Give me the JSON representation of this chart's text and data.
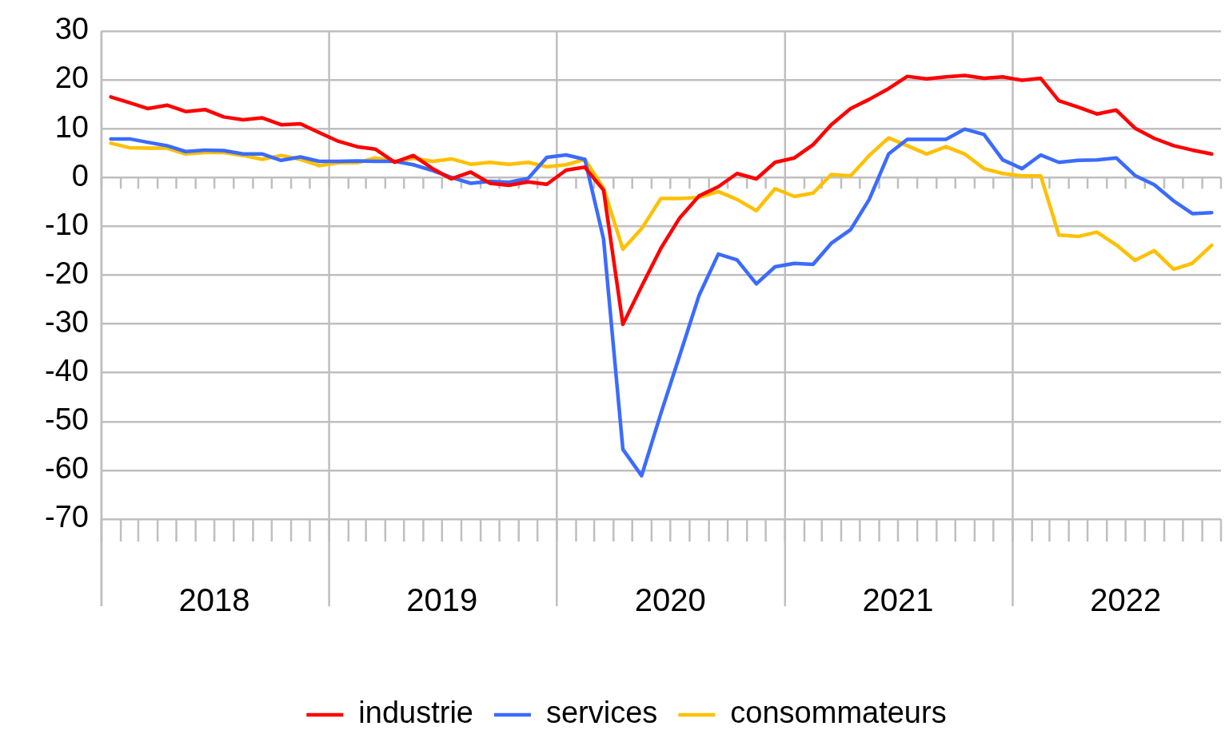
{
  "chart_data": {
    "type": "line",
    "x": [
      "2018-01-16",
      "2018-02-15",
      "2018-03-16",
      "2018-04-16",
      "2018-05-16",
      "2018-06-16",
      "2018-07-16",
      "2018-08-16",
      "2018-09-16",
      "2018-10-16",
      "2018-11-16",
      "2018-12-16",
      "2019-01-16",
      "2019-02-15",
      "2019-03-16",
      "2019-04-16",
      "2019-05-16",
      "2019-06-16",
      "2019-07-16",
      "2019-08-16",
      "2019-09-16",
      "2019-10-16",
      "2019-11-16",
      "2019-12-16",
      "2020-01-16",
      "2020-02-15",
      "2020-03-16",
      "2020-04-16",
      "2020-05-16",
      "2020-06-16",
      "2020-07-16",
      "2020-08-16",
      "2020-09-16",
      "2020-10-16",
      "2020-11-16",
      "2020-12-16",
      "2021-01-16",
      "2021-02-15",
      "2021-03-16",
      "2021-04-16",
      "2021-05-16",
      "2021-06-16",
      "2021-07-16",
      "2021-08-16",
      "2021-09-16",
      "2021-10-16",
      "2021-11-16",
      "2021-12-16",
      "2022-01-16",
      "2022-02-15",
      "2022-03-16",
      "2022-04-16",
      "2022-05-16",
      "2022-06-16",
      "2022-07-16",
      "2022-08-16",
      "2022-09-16",
      "2022-10-16",
      "2022-11-16"
    ],
    "series": [
      {
        "name": "industrie",
        "color": "#ff0000",
        "values": [
          16.5,
          15.3,
          14.1,
          14.8,
          13.5,
          13.9,
          12.4,
          11.8,
          12.2,
          10.8,
          11.0,
          9.2,
          7.4,
          6.3,
          5.8,
          3.1,
          4.5,
          1.8,
          -0.3,
          1.1,
          -1.2,
          -1.6,
          -0.9,
          -1.4,
          1.5,
          2.1,
          -2.6,
          -30.1,
          -22.3,
          -14.5,
          -8.3,
          -3.8,
          -1.9,
          0.8,
          -0.3,
          3.1,
          4.0,
          6.7,
          10.8,
          14.1,
          16.0,
          18.2,
          20.7,
          20.2,
          20.6,
          20.9,
          20.3,
          20.6,
          19.9,
          20.3,
          15.7,
          14.4,
          13.0,
          13.8,
          10.1,
          8.0,
          6.5,
          5.6,
          4.8
        ]
      },
      {
        "name": "services",
        "color": "#3b6bff",
        "values": [
          7.9,
          7.9,
          7.2,
          6.5,
          5.3,
          5.6,
          5.5,
          4.8,
          4.8,
          3.5,
          4.2,
          3.3,
          3.3,
          3.4,
          3.3,
          3.3,
          2.6,
          1.4,
          0.0,
          -1.2,
          -0.8,
          -1.0,
          -0.2,
          4.1,
          4.6,
          3.7,
          -12.6,
          -55.7,
          -61.1,
          -48.3,
          -36.5,
          -24.2,
          -15.7,
          -16.9,
          -21.8,
          -18.3,
          -17.6,
          -17.8,
          -13.5,
          -10.7,
          -4.5,
          4.8,
          7.8,
          7.8,
          7.8,
          9.9,
          8.8,
          3.6,
          1.8,
          4.6,
          3.1,
          3.5,
          3.6,
          4.0,
          0.4,
          -1.5,
          -4.8,
          -7.4,
          -7.2
        ]
      },
      {
        "name": "consommateurs",
        "color": "#ffc000",
        "values": [
          7.0,
          6.1,
          6.0,
          6.0,
          4.8,
          5.1,
          5.1,
          4.5,
          3.7,
          4.5,
          3.7,
          2.4,
          3.0,
          3.0,
          4.0,
          3.3,
          3.9,
          3.3,
          3.8,
          2.7,
          3.1,
          2.7,
          3.1,
          2.2,
          2.6,
          3.7,
          -2.2,
          -14.7,
          -10.5,
          -4.3,
          -4.3,
          -4.1,
          -2.9,
          -4.5,
          -6.8,
          -2.3,
          -3.9,
          -3.2,
          0.6,
          0.3,
          4.5,
          8.1,
          6.5,
          4.8,
          6.3,
          4.8,
          1.8,
          0.8,
          0.3,
          0.3,
          -11.8,
          -12.1,
          -11.2,
          -13.8,
          -17.0,
          -15.0,
          -18.8,
          -17.6,
          -13.9
        ]
      }
    ],
    "xlim": [
      "2018-01-01",
      "2022-12-01"
    ],
    "xticks": [
      {
        "value": "2018-01-01",
        "label": null
      },
      {
        "value": "2018-07-01",
        "label": "2018"
      },
      {
        "value": "2019-01-01",
        "label": null
      },
      {
        "value": "2019-07-01",
        "label": "2019"
      },
      {
        "value": "2020-01-01",
        "label": null
      },
      {
        "value": "2020-07-01",
        "label": "2020"
      },
      {
        "value": "2021-01-01",
        "label": null
      },
      {
        "value": "2021-07-01",
        "label": "2021"
      },
      {
        "value": "2022-01-01",
        "label": null
      },
      {
        "value": "2022-07-01",
        "label": "2022"
      }
    ],
    "ylim": [
      -70,
      30
    ],
    "yticks": [
      -70,
      -60,
      -50,
      -40,
      -30,
      -20,
      -10,
      0,
      10,
      20,
      30
    ],
    "grid": true,
    "legend": "bottom",
    "marker": "none",
    "line_style": "solid"
  }
}
